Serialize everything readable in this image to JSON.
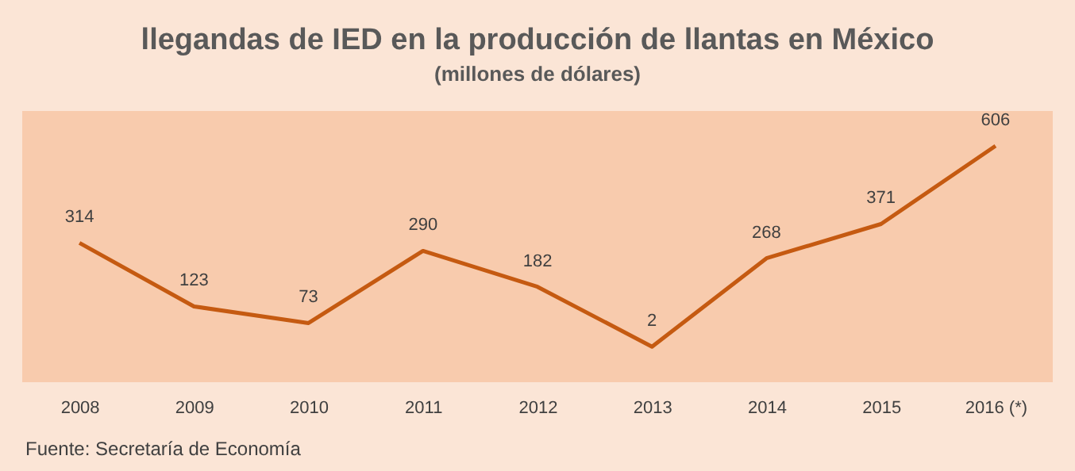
{
  "chart_data": {
    "type": "line",
    "title": "llegandas de IED en la producción de llantas en México",
    "subtitle": "(millones de dólares)",
    "categories": [
      "2008",
      "2009",
      "2010",
      "2011",
      "2012",
      "2013",
      "2014",
      "2015",
      "2016 (*)"
    ],
    "series": [
      {
        "color": "#c55a11",
        "values": [
          314,
          123,
          73,
          290,
          182,
          2,
          268,
          371,
          606
        ]
      }
    ],
    "data_labels": true,
    "tick_labels": "x",
    "annotations": [
      "Fuente: Secretaría de Economía"
    ]
  }
}
